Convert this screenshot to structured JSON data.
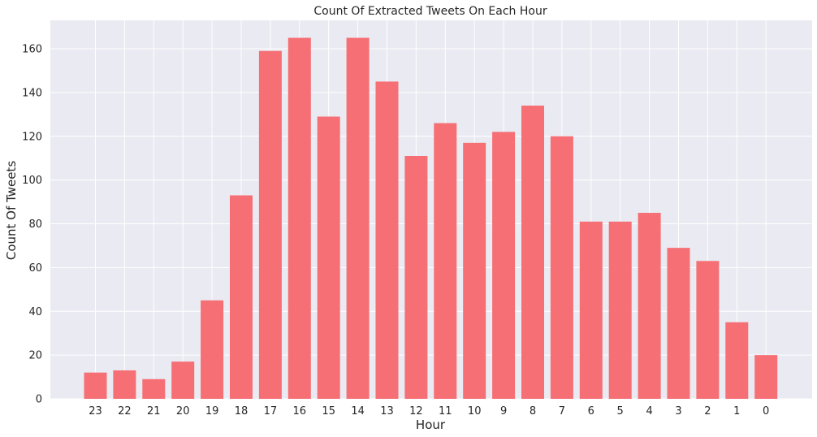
{
  "chart_data": {
    "type": "bar",
    "title": "Count Of Extracted Tweets On Each Hour",
    "xlabel": "Hour",
    "ylabel": "Count Of Tweets",
    "categories": [
      "23",
      "22",
      "21",
      "20",
      "19",
      "18",
      "17",
      "16",
      "15",
      "14",
      "13",
      "12",
      "11",
      "10",
      "9",
      "8",
      "7",
      "6",
      "5",
      "4",
      "3",
      "2",
      "1",
      "0"
    ],
    "values": [
      12,
      13,
      9,
      17,
      45,
      93,
      159,
      165,
      129,
      165,
      145,
      111,
      126,
      117,
      122,
      134,
      120,
      81,
      81,
      85,
      69,
      63,
      35,
      20
    ],
    "ylim": [
      0,
      173
    ],
    "yticks": [
      0,
      20,
      40,
      60,
      80,
      100,
      120,
      140,
      160
    ],
    "grid": true,
    "colors": {
      "bar": "#f56f74",
      "background": "#eaeaf2",
      "grid": "#ffffff"
    }
  }
}
